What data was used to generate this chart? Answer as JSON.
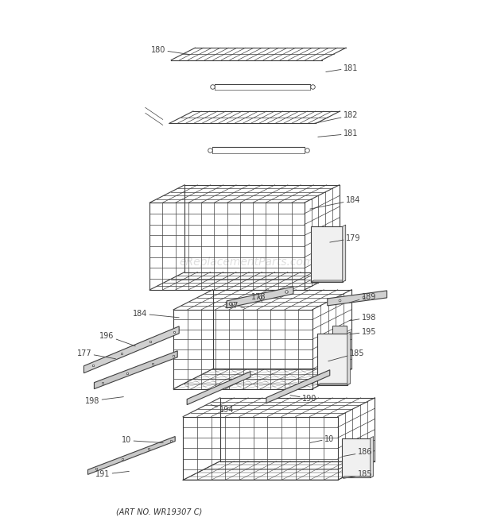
{
  "background_color": "#ffffff",
  "watermark": "eReplacementParts.com",
  "watermark_color": "#c8c8c8",
  "footer": "(ART NO. WR19307 C)",
  "footer_fontsize": 7,
  "fig_width": 6.2,
  "fig_height": 6.61,
  "dpi": 100,
  "line_color": "#404040",
  "label_fontsize": 7,
  "label_color": "#222222"
}
